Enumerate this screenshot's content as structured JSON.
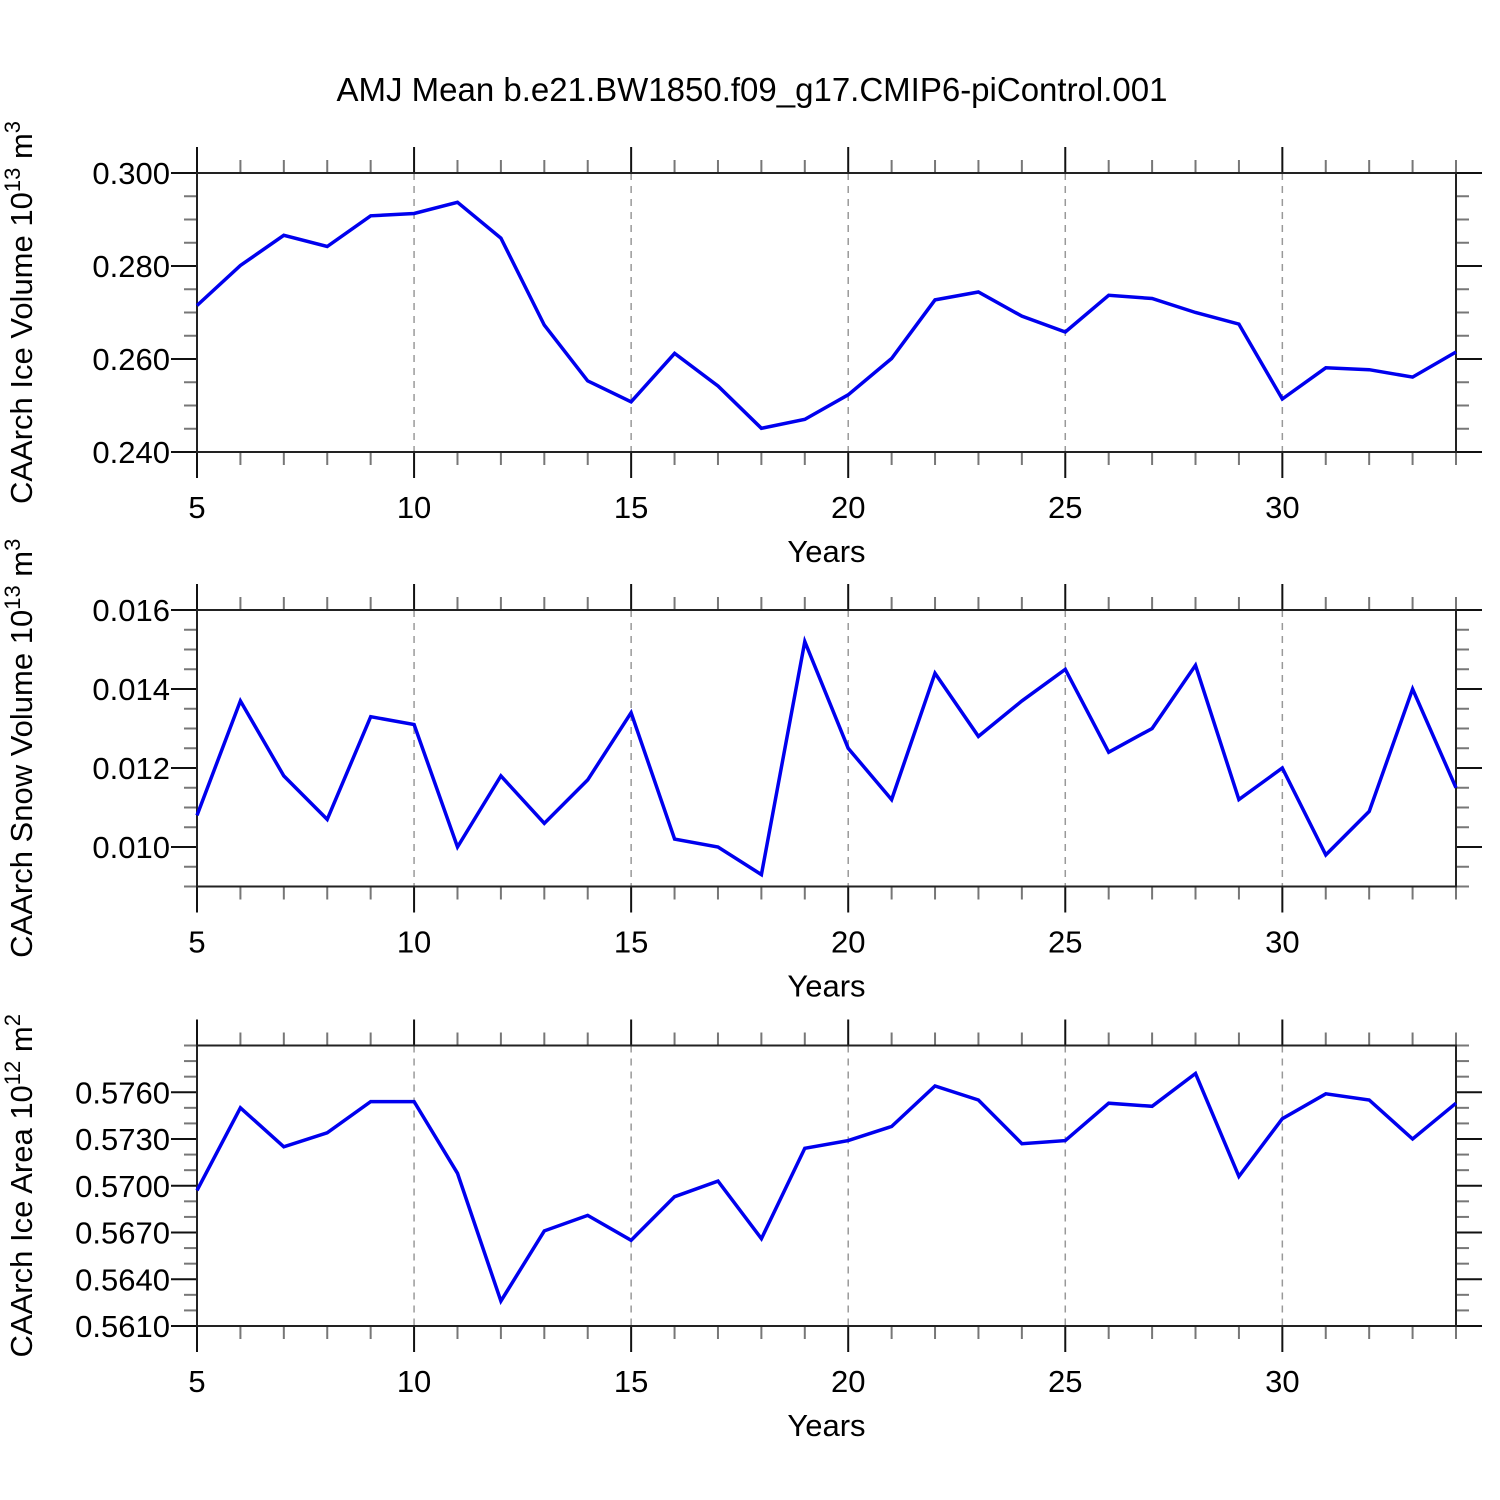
{
  "title": "AMJ Mean b.e21.BW1850.f09_g17.CMIP6-piControl.001",
  "figure": {
    "background": "#ffffff",
    "line_color": "#0000ee",
    "frame_color": "#222222",
    "tick_major_color": "#111111",
    "tick_minor_color": "#777777",
    "grid_color": "#999999",
    "text_color": "#000000"
  },
  "chart_data": [
    {
      "id": "ice-volume",
      "type": "line",
      "ylabel": "CAArch Ice Volume 10^13 m^3",
      "xlabel": "Years",
      "x": [
        5,
        6,
        7,
        8,
        9,
        10,
        11,
        12,
        13,
        14,
        15,
        16,
        17,
        18,
        19,
        20,
        21,
        22,
        23,
        24,
        25,
        26,
        27,
        28,
        29,
        30,
        31,
        32,
        33,
        34
      ],
      "values": [
        0.2715,
        0.2801,
        0.2866,
        0.2842,
        0.2908,
        0.2913,
        0.2937,
        0.286,
        0.2673,
        0.2553,
        0.2508,
        0.2612,
        0.2542,
        0.2451,
        0.247,
        0.2523,
        0.2601,
        0.2727,
        0.2744,
        0.2692,
        0.2658,
        0.2737,
        0.273,
        0.27,
        0.2675,
        0.2514,
        0.2581,
        0.2577,
        0.2561,
        0.2615
      ],
      "xlim": [
        5,
        34
      ],
      "ylim": [
        0.24,
        0.3
      ],
      "xticks": {
        "values": [
          5,
          10,
          15,
          20,
          25,
          30
        ],
        "labels": [
          "5",
          "10",
          "15",
          "20",
          "25",
          "30"
        ]
      },
      "yticks": {
        "values": [
          0.24,
          0.26,
          0.28,
          0.3
        ],
        "labels": [
          "0.240",
          "0.260",
          "0.280",
          "0.300"
        ]
      },
      "x_minor_step": 1,
      "y_minor_step": 0.005,
      "grid_x": [
        10,
        15,
        20,
        25,
        30
      ],
      "grid_on": true,
      "legend": "none"
    },
    {
      "id": "snow-volume",
      "type": "line",
      "ylabel": "CAArch Snow Volume 10^13 m^3",
      "xlabel": "Years",
      "x": [
        5,
        6,
        7,
        8,
        9,
        10,
        11,
        12,
        13,
        14,
        15,
        16,
        17,
        18,
        19,
        20,
        21,
        22,
        23,
        24,
        25,
        26,
        27,
        28,
        29,
        30,
        31,
        32,
        33,
        34
      ],
      "values": [
        0.0108,
        0.0137,
        0.0118,
        0.0107,
        0.0133,
        0.0131,
        0.01,
        0.0118,
        0.0106,
        0.0117,
        0.0134,
        0.0102,
        0.01,
        0.0093,
        0.0152,
        0.0125,
        0.0112,
        0.0144,
        0.0128,
        0.0137,
        0.0145,
        0.0124,
        0.013,
        0.0146,
        0.0112,
        0.012,
        0.0098,
        0.0109,
        0.014,
        0.0115
      ],
      "xlim": [
        5,
        34
      ],
      "ylim": [
        0.009,
        0.016
      ],
      "xticks": {
        "values": [
          5,
          10,
          15,
          20,
          25,
          30
        ],
        "labels": [
          "5",
          "10",
          "15",
          "20",
          "25",
          "30"
        ]
      },
      "yticks": {
        "values": [
          0.01,
          0.012,
          0.014,
          0.016
        ],
        "labels": [
          "0.010",
          "0.012",
          "0.014",
          "0.016"
        ]
      },
      "x_minor_step": 1,
      "y_minor_step": 0.0005,
      "grid_x": [
        10,
        15,
        20,
        25,
        30
      ],
      "grid_on": true,
      "legend": "none"
    },
    {
      "id": "ice-area",
      "type": "line",
      "ylabel": "CAArch Ice Area 10^12 m^2",
      "xlabel": "Years",
      "x": [
        5,
        6,
        7,
        8,
        9,
        10,
        11,
        12,
        13,
        14,
        15,
        16,
        17,
        18,
        19,
        20,
        21,
        22,
        23,
        24,
        25,
        26,
        27,
        28,
        29,
        30,
        31,
        32,
        33,
        34
      ],
      "values": [
        0.5697,
        0.575,
        0.5725,
        0.5734,
        0.5754,
        0.5754,
        0.5708,
        0.5626,
        0.5671,
        0.5681,
        0.5665,
        0.5693,
        0.5703,
        0.5666,
        0.5724,
        0.5729,
        0.5738,
        0.5764,
        0.5755,
        0.5727,
        0.5729,
        0.5753,
        0.5751,
        0.5772,
        0.5706,
        0.5743,
        0.5759,
        0.5755,
        0.573,
        0.5753
      ],
      "xlim": [
        5,
        34
      ],
      "ylim": [
        0.561,
        0.579
      ],
      "xticks": {
        "values": [
          5,
          10,
          15,
          20,
          25,
          30
        ],
        "labels": [
          "5",
          "10",
          "15",
          "20",
          "25",
          "30"
        ]
      },
      "yticks": {
        "values": [
          0.561,
          0.564,
          0.567,
          0.57,
          0.573,
          0.576
        ],
        "labels": [
          "0.5610",
          "0.5640",
          "0.5670",
          "0.5700",
          "0.5730",
          "0.5760"
        ]
      },
      "x_minor_step": 1,
      "y_minor_step": 0.001,
      "grid_x": [
        10,
        15,
        20,
        25,
        30
      ],
      "grid_on": true,
      "legend": "none"
    }
  ]
}
